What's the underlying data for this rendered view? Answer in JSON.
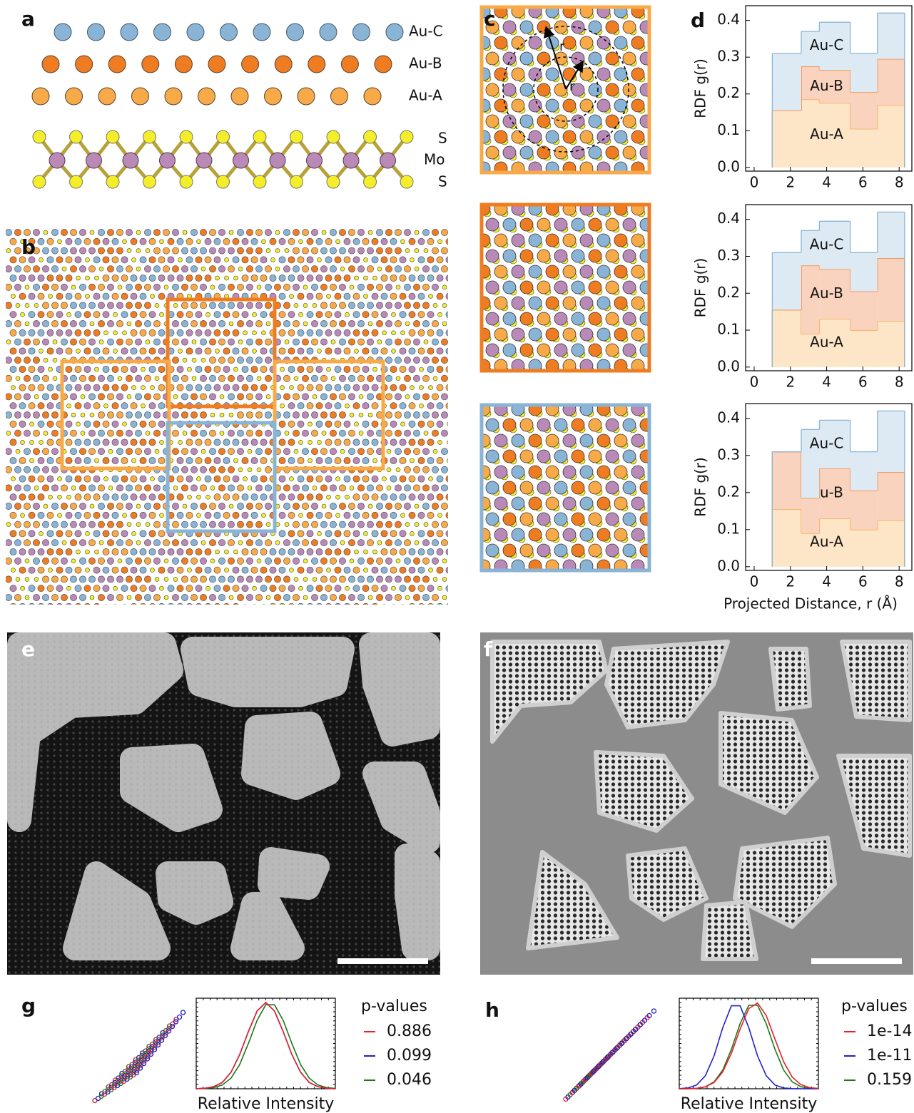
{
  "panel_labels": [
    "a",
    "b",
    "c",
    "d",
    "e",
    "f",
    "g",
    "h"
  ],
  "structure_labels": {
    "gold_layers": [
      "Au-C",
      "Au-B",
      "Au-A"
    ],
    "mos2_layers": [
      "S",
      "Mo",
      "S"
    ]
  },
  "panel_c_labels": [
    "r",
    "r"
  ],
  "chart_data": [
    {
      "type": "histogram",
      "stacked": true,
      "ylabel": "RDF g(r)",
      "bins": [
        1,
        2.6,
        3.6,
        5.3,
        6.8,
        8.3
      ],
      "xlim": [
        -0.47,
        8.7
      ],
      "xticks": [
        0,
        2,
        4,
        6,
        8
      ],
      "ylim": [
        -0.01,
        0.44
      ],
      "yticks": [
        {
          "value": 0,
          "label": "0.0"
        },
        {
          "value": 0.1,
          "label": "0.1"
        },
        {
          "value": 0.2,
          "label": "0.2"
        },
        {
          "value": 0.3,
          "label": "0.3"
        },
        {
          "value": 0.4,
          "label": "0.4"
        }
      ],
      "series": [
        {
          "name": "Au-A",
          "color": "#f5a640",
          "fill": "#fde5c8",
          "values": [
            0.155,
            0.185,
            0.175,
            0.105,
            0.17
          ]
        },
        {
          "name": "Au-B",
          "color": "#ef7d2c",
          "fill": "#f9d3be",
          "values": [
            0,
            0.09,
            0.09,
            0.1,
            0.125
          ]
        },
        {
          "name": "Au-C",
          "color": "#8ab6d6",
          "fill": "#dde9f3",
          "values": [
            0.155,
            0.095,
            0.13,
            0.105,
            0.125
          ]
        }
      ]
    },
    {
      "type": "histogram",
      "stacked": true,
      "ylabel": "RDF g(r)",
      "bins": [
        1,
        2.6,
        3.6,
        5.3,
        6.8,
        8.3
      ],
      "xlim": [
        -0.47,
        8.7
      ],
      "xticks": [
        0,
        2,
        4,
        6,
        8
      ],
      "ylim": [
        -0.01,
        0.44
      ],
      "yticks": [
        {
          "value": 0,
          "label": "0.0"
        },
        {
          "value": 0.1,
          "label": "0.1"
        },
        {
          "value": 0.2,
          "label": "0.2"
        },
        {
          "value": 0.3,
          "label": "0.3"
        },
        {
          "value": 0.4,
          "label": "0.4"
        }
      ],
      "series": [
        {
          "name": "Au-A",
          "color": "#f5a640",
          "fill": "#fde5c8",
          "values": [
            0.155,
            0.09,
            0.13,
            0.1,
            0.125
          ]
        },
        {
          "name": "Au-B",
          "color": "#ef7d2c",
          "fill": "#f9d3be",
          "values": [
            0,
            0.185,
            0.135,
            0.105,
            0.17
          ]
        },
        {
          "name": "Au-C",
          "color": "#8ab6d6",
          "fill": "#dde9f3",
          "values": [
            0.155,
            0.095,
            0.13,
            0.105,
            0.125
          ]
        }
      ]
    },
    {
      "type": "histogram",
      "stacked": true,
      "ylabel": "RDF g(r)",
      "xlabel": "Projected Distance, r (Å)",
      "bins": [
        1,
        2.6,
        3.6,
        5.3,
        6.8,
        8.3
      ],
      "xlim": [
        -0.47,
        8.7
      ],
      "xticks": [
        0,
        2,
        4,
        6,
        8
      ],
      "ylim": [
        -0.01,
        0.44
      ],
      "yticks": [
        {
          "value": 0,
          "label": "0.0"
        },
        {
          "value": 0.1,
          "label": "0.1"
        },
        {
          "value": 0.2,
          "label": "0.2"
        },
        {
          "value": 0.3,
          "label": "0.3"
        },
        {
          "value": 0.4,
          "label": "0.4"
        }
      ],
      "series": [
        {
          "name": "Au-A",
          "color": "#f5a640",
          "fill": "#fde5c8",
          "values": [
            0.155,
            0.09,
            0.13,
            0.1,
            0.125
          ]
        },
        {
          "name": "Au-B",
          "color": "#ef7d2c",
          "fill": "#f9d3be",
          "values": [
            0.155,
            0.095,
            0.135,
            0.105,
            0.13
          ]
        },
        {
          "name": "Au-C",
          "color": "#8ab6d6",
          "fill": "#dde9f3",
          "values": [
            0,
            0.185,
            0.13,
            0.105,
            0.165
          ]
        }
      ]
    },
    {
      "type": "line",
      "xlabel": "Relative Intensity",
      "legend_title": "p-values",
      "x": [
        0,
        1,
        2,
        3,
        4,
        5,
        6,
        7,
        8,
        9,
        10,
        11,
        12,
        13,
        14,
        15,
        16
      ],
      "xlim": [
        0,
        16
      ],
      "ylim": [
        0,
        1.05
      ],
      "series": [
        {
          "name": "0.886",
          "color": "#e8202a",
          "values": [
            0.001,
            0.006,
            0.024,
            0.073,
            0.192,
            0.396,
            0.662,
            0.902,
            1,
            0.902,
            0.662,
            0.396,
            0.192,
            0.073,
            0.024,
            0.006,
            0.001
          ]
        },
        {
          "name": "0.099",
          "color": "#1f1fd0",
          "values": [
            0.001,
            0.006,
            0.024,
            0.073,
            0.192,
            0.396,
            0.662,
            0.902,
            1,
            0.902,
            0.662,
            0.396,
            0.192,
            0.073,
            0.024,
            0.006,
            0.001
          ]
        },
        {
          "name": "0.046",
          "color": "#1a7a1a",
          "values": [
            0.001,
            0.003,
            0.013,
            0.044,
            0.123,
            0.28,
            0.524,
            0.793,
            0.974,
            0.974,
            0.793,
            0.524,
            0.28,
            0.123,
            0.044,
            0.013,
            0.003
          ]
        }
      ]
    },
    {
      "type": "line",
      "xlabel": "Relative Intensity",
      "legend_title": "p-values",
      "x": [
        0,
        1,
        2,
        3,
        4,
        5,
        6,
        7,
        8,
        9,
        10,
        11,
        12,
        13,
        14,
        15,
        16
      ],
      "xlim": [
        0,
        16
      ],
      "ylim": [
        0,
        1.05
      ],
      "series": [
        {
          "name": "1e-14",
          "color": "#e8202a",
          "values": [
            0.0002,
            0.001,
            0.005,
            0.022,
            0.073,
            0.195,
            0.411,
            0.693,
            0.93,
            0.995,
            0.849,
            0.577,
            0.313,
            0.135,
            0.047,
            0.013,
            0.003
          ]
        },
        {
          "name": "1e-11",
          "color": "#1f1fd0",
          "values": [
            0.002,
            0.009,
            0.044,
            0.151,
            0.381,
            0.707,
            0.962,
            0.962,
            0.707,
            0.381,
            0.151,
            0.044,
            0.009,
            0.002,
            0,
            0,
            0
          ]
        },
        {
          "name": "0.159",
          "color": "#1a7a1a",
          "values": [
            0,
            0.001,
            0.005,
            0.023,
            0.08,
            0.216,
            0.458,
            0.755,
            0.969,
            0.969,
            0.755,
            0.458,
            0.216,
            0.08,
            0.023,
            0.005,
            0.001
          ]
        }
      ]
    }
  ]
}
